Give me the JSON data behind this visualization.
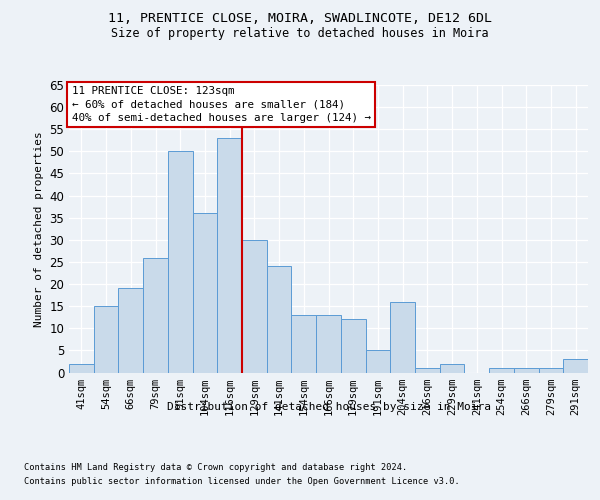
{
  "title1": "11, PRENTICE CLOSE, MOIRA, SWADLINCOTE, DE12 6DL",
  "title2": "Size of property relative to detached houses in Moira",
  "xlabel": "Distribution of detached houses by size in Moira",
  "ylabel": "Number of detached properties",
  "categories": [
    "41sqm",
    "54sqm",
    "66sqm",
    "79sqm",
    "91sqm",
    "104sqm",
    "116sqm",
    "129sqm",
    "141sqm",
    "154sqm",
    "166sqm",
    "179sqm",
    "191sqm",
    "204sqm",
    "216sqm",
    "229sqm",
    "241sqm",
    "254sqm",
    "266sqm",
    "279sqm",
    "291sqm"
  ],
  "values": [
    2,
    15,
    19,
    26,
    50,
    36,
    53,
    30,
    24,
    13,
    13,
    12,
    5,
    16,
    1,
    2,
    0,
    1,
    1,
    1,
    3
  ],
  "bar_color": "#c9daea",
  "bar_edge_color": "#5b9bd5",
  "vline_x": 6.5,
  "vline_color": "#cc0000",
  "annotation_line1": "11 PRENTICE CLOSE: 123sqm",
  "annotation_line2": "← 60% of detached houses are smaller (184)",
  "annotation_line3": "40% of semi-detached houses are larger (124) →",
  "annotation_box_color": "#ffffff",
  "annotation_box_edge": "#cc0000",
  "ylim": [
    0,
    65
  ],
  "yticks": [
    0,
    5,
    10,
    15,
    20,
    25,
    30,
    35,
    40,
    45,
    50,
    55,
    60,
    65
  ],
  "footer1": "Contains HM Land Registry data © Crown copyright and database right 2024.",
  "footer2": "Contains public sector information licensed under the Open Government Licence v3.0.",
  "bg_color": "#edf2f7"
}
